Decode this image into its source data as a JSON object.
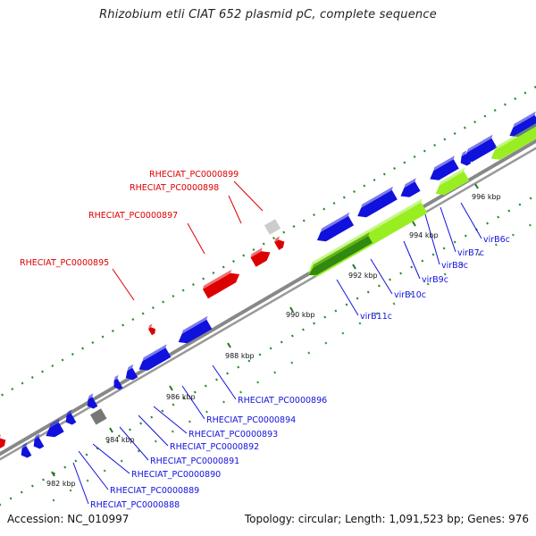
{
  "title": "Rhizobium etli CIAT 652 plasmid pC, complete sequence",
  "footer": {
    "accession": "Accession: NC_010997",
    "summary": "Topology: circular; Length: 1,091,523 bp; Genes: 976"
  },
  "colors": {
    "backbone": "#888888",
    "forward_gene": "#dd0000",
    "reverse_gene": "#1111dd",
    "vir_gene": "#99ee22",
    "vir_gene_dark": "#338811",
    "hypothetical": "#cccccc",
    "tick_major": "#227722",
    "tick_minor": "#33aa33"
  },
  "scale_ticks": [
    "982 kbp",
    "984 kbp",
    "986 kbp",
    "988 kbp",
    "990 kbp",
    "992 kbp",
    "994 kbp",
    "996 kbp"
  ],
  "forward_labels": [
    "RHECIAT_PC0000899",
    "RHECIAT_PC0000898",
    "RHECIAT_PC0000897",
    "RHECIAT_PC0000895"
  ],
  "reverse_labels": [
    "RHECIAT_PC0000896",
    "RHECIAT_PC0000894",
    "RHECIAT_PC0000893",
    "RHECIAT_PC0000892",
    "RHECIAT_PC0000891",
    "RHECIAT_PC0000890",
    "RHECIAT_PC0000889",
    "RHECIAT_PC0000888"
  ],
  "vir_labels": [
    "virB11c",
    "virB10c",
    "virB9c",
    "virB8c",
    "virB7c",
    "virB6c"
  ]
}
